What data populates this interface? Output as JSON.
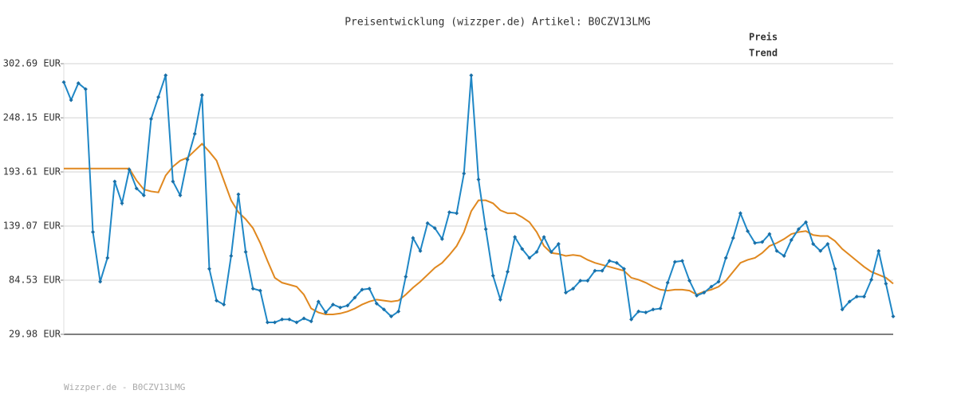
{
  "chart_data": {
    "type": "line",
    "title": "Preisentwicklung (wizzper.de) Artikel: B0CZV13LMG",
    "footer": "Wizzper.de - B0CZV13LMG",
    "ylim": [
      29.98,
      302.69
    ],
    "yticks": [
      {
        "value": 29.98,
        "label": "29.98 EUR"
      },
      {
        "value": 84.53,
        "label": "84.53 EUR"
      },
      {
        "value": 139.07,
        "label": "139.07 EUR"
      },
      {
        "value": 193.61,
        "label": "193.61 EUR"
      },
      {
        "value": 248.15,
        "label": "248.15 EUR"
      },
      {
        "value": 302.69,
        "label": "302.69 EUR"
      }
    ],
    "grid": true,
    "legend": "top-right",
    "series": [
      {
        "name": "Preis",
        "color": "#1f87c6",
        "values": [
          284,
          266,
          283,
          277,
          133,
          83,
          107,
          184,
          162,
          196,
          177,
          170,
          247,
          269,
          291,
          184,
          170,
          206,
          232,
          271,
          96,
          64,
          60,
          109,
          171,
          113,
          76,
          74,
          42,
          42,
          45,
          45,
          42,
          46,
          43,
          63,
          52,
          60,
          57,
          59,
          67,
          75,
          76,
          61,
          55,
          48,
          53,
          88,
          127,
          114,
          142,
          137,
          126,
          153,
          152,
          192,
          291,
          186,
          136,
          89,
          65,
          93,
          128,
          116,
          107,
          113,
          128,
          113,
          121,
          72,
          76,
          84,
          84,
          94,
          94,
          104,
          102,
          96,
          45,
          53,
          52,
          55,
          56,
          82,
          103,
          104,
          84,
          69,
          72,
          78,
          83,
          107,
          127,
          152,
          134,
          122,
          123,
          131,
          114,
          109,
          125,
          136,
          143,
          121,
          114,
          121,
          96,
          55,
          63,
          68,
          68,
          85,
          114,
          81,
          48
        ]
      },
      {
        "name": "Trend",
        "color": "#e0881f",
        "values": [
          197,
          197,
          197,
          197,
          197,
          197,
          197,
          197,
          197,
          197,
          185,
          176,
          174,
          173,
          190,
          199,
          205,
          208,
          215,
          222,
          214,
          205,
          185,
          165,
          153,
          146,
          137,
          122,
          104,
          87,
          82,
          80,
          78,
          70,
          56,
          52,
          50,
          50,
          51,
          53,
          56,
          60,
          63,
          65,
          64,
          63,
          64,
          70,
          77,
          83,
          90,
          97,
          102,
          110,
          119,
          133,
          154,
          165,
          165,
          162,
          155,
          152,
          152,
          148,
          143,
          133,
          119,
          112,
          111,
          109,
          110,
          109,
          105,
          102,
          100,
          98,
          96,
          94,
          87,
          85,
          82,
          78,
          75,
          74,
          75,
          75,
          74,
          70,
          73,
          75,
          78,
          84,
          93,
          102,
          105,
          107,
          112,
          119,
          122,
          126,
          131,
          133,
          134,
          130,
          129,
          129,
          124,
          116,
          110,
          104,
          98,
          93,
          90,
          87,
          81
        ]
      }
    ]
  }
}
